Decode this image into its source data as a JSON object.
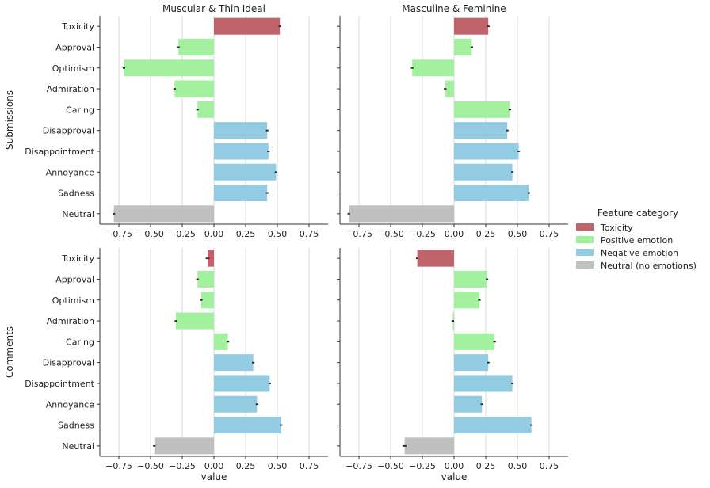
{
  "chart_data": {
    "type": "bar",
    "orientation": "horizontal",
    "categories": [
      "Toxicity",
      "Approval",
      "Optimism",
      "Admiration",
      "Caring",
      "Disapproval",
      "Disappointment",
      "Annoyance",
      "Sadness",
      "Neutral"
    ],
    "category_group": [
      "Toxicity",
      "Positive emotion",
      "Positive emotion",
      "Positive emotion",
      "Positive emotion",
      "Negative emotion",
      "Negative emotion",
      "Negative emotion",
      "Negative emotion",
      "Neutral (no emotions)"
    ],
    "column_titles": [
      "Muscular & Thin Ideal",
      "Masculine & Feminine"
    ],
    "row_labels": [
      "Submissions",
      "Comments"
    ],
    "xlabel": "value",
    "xlim": [
      -0.9,
      0.9
    ],
    "x_ticks": [
      -0.75,
      -0.5,
      -0.25,
      0.0,
      0.25,
      0.5,
      0.75
    ],
    "x_tick_labels": [
      "−0.75",
      "−0.50",
      "−0.25",
      "0.00",
      "0.25",
      "0.50",
      "0.75"
    ],
    "grid": "vertical",
    "legend": {
      "title": "Feature category",
      "position": "right",
      "entries": [
        {
          "label": "Toxicity",
          "color": "#c0636b"
        },
        {
          "label": "Positive emotion",
          "color": "#a3f19f"
        },
        {
          "label": "Negative emotion",
          "color": "#92cbe2"
        },
        {
          "label": "Neutral (no emotions)",
          "color": "#c0c0c0"
        }
      ]
    },
    "panels": [
      {
        "row": "Submissions",
        "column": "Muscular & Thin Ideal",
        "values": [
          0.52,
          -0.28,
          -0.71,
          -0.31,
          -0.13,
          0.42,
          0.43,
          0.49,
          0.42,
          -0.79
        ],
        "errors": [
          0.01,
          0.01,
          0.01,
          0.01,
          0.01,
          0.01,
          0.01,
          0.01,
          0.01,
          0.01
        ]
      },
      {
        "row": "Submissions",
        "column": "Masculine & Feminine",
        "values": [
          0.27,
          0.14,
          -0.33,
          -0.07,
          0.44,
          0.42,
          0.51,
          0.46,
          0.59,
          -0.83
        ],
        "errors": [
          0.01,
          0.01,
          0.01,
          0.01,
          0.01,
          0.01,
          0.01,
          0.01,
          0.01,
          0.01
        ]
      },
      {
        "row": "Comments",
        "column": "Muscular & Thin Ideal",
        "values": [
          -0.05,
          -0.13,
          -0.1,
          -0.3,
          0.11,
          0.31,
          0.44,
          0.34,
          0.53,
          -0.47
        ],
        "errors": [
          0.015,
          0.01,
          0.01,
          0.01,
          0.01,
          0.01,
          0.01,
          0.01,
          0.01,
          0.01
        ]
      },
      {
        "row": "Comments",
        "column": "Masculine & Feminine",
        "values": [
          -0.29,
          0.26,
          0.2,
          -0.01,
          0.32,
          0.27,
          0.46,
          0.22,
          0.61,
          -0.39
        ],
        "errors": [
          0.01,
          0.01,
          0.01,
          0.01,
          0.01,
          0.01,
          0.01,
          0.01,
          0.01,
          0.015
        ]
      }
    ]
  }
}
